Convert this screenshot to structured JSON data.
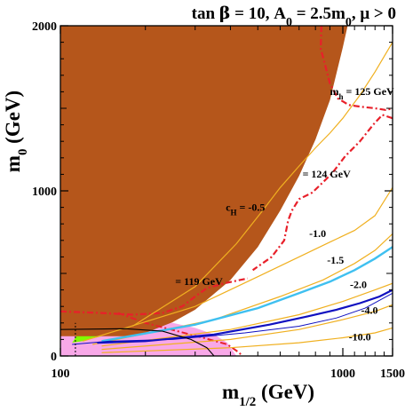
{
  "chart_data": {
    "type": "line",
    "title": "tan β = 10, A₀ = 2.5m₀, μ > 0",
    "title_parts": {
      "pre": "tan ",
      "beta": "β",
      "mid": " = 10, A",
      "sub0": "0",
      "eq": " = 2.5m",
      "sub0b": "0",
      "post": ",  μ > 0"
    },
    "xlabel": {
      "main": "m",
      "sub": "1/2",
      "unit": " (GeV)"
    },
    "ylabel": {
      "main": "m",
      "sub": "0",
      "unit": " (GeV)"
    },
    "xlim": [
      100,
      1500
    ],
    "ylim": [
      0,
      2000
    ],
    "x_ticks": [
      100,
      1000,
      1500
    ],
    "y_ticks": [
      0,
      1000,
      2000
    ],
    "x_tick_labels": [
      "100",
      "1000",
      "1500"
    ],
    "y_tick_labels": [
      "0",
      "1000",
      "2000"
    ],
    "colors": {
      "stau_lsp": "#b5561b",
      "gminus2": "#80ff00",
      "bsgamma": "#f8a8e8",
      "relic": "#1010c0",
      "ch": "#f0b020",
      "higgs": "#e8202a",
      "bsmumu": "#3fc0f0",
      "lep": "#000000"
    },
    "regions": {
      "stau_lsp": [
        [
          100,
          2000
        ],
        [
          1040,
          2000
        ],
        [
          1000,
          1870
        ],
        [
          900,
          1550
        ],
        [
          800,
          1310
        ],
        [
          700,
          1090
        ],
        [
          600,
          880
        ],
        [
          500,
          660
        ],
        [
          400,
          460
        ],
        [
          300,
          280
        ],
        [
          250,
          205
        ],
        [
          200,
          140
        ],
        [
          180,
          120
        ],
        [
          100,
          120
        ]
      ],
      "gminus2": [
        [
          110,
          80
        ],
        [
          115,
          130
        ],
        [
          120,
          180
        ],
        [
          130,
          230
        ],
        [
          150,
          300
        ],
        [
          170,
          370
        ],
        [
          200,
          450
        ],
        [
          240,
          530
        ],
        [
          340,
          560
        ],
        [
          320,
          480
        ],
        [
          300,
          420
        ],
        [
          280,
          360
        ],
        [
          250,
          300
        ],
        [
          220,
          250
        ],
        [
          200,
          210
        ],
        [
          180,
          170
        ],
        [
          160,
          150
        ],
        [
          140,
          120
        ],
        [
          120,
          90
        ]
      ],
      "bsgamma": [
        [
          100,
          0
        ],
        [
          100,
          250
        ],
        [
          150,
          230
        ],
        [
          200,
          220
        ],
        [
          250,
          200
        ],
        [
          300,
          170
        ],
        [
          350,
          130
        ],
        [
          390,
          80
        ],
        [
          420,
          0
        ]
      ]
    },
    "series": [
      {
        "label": "mₕ = 125 GeV",
        "kind": "higgs",
        "label_parts": {
          "main": "m",
          "sub": "h",
          "rest": " = 125 GeV"
        },
        "label_at": [
          900,
          1580
        ],
        "points": [
          [
            840,
            2000
          ],
          [
            835,
            1860
          ],
          [
            860,
            1780
          ],
          [
            900,
            1650
          ],
          [
            960,
            1560
          ],
          [
            1050,
            1520
          ],
          [
            1150,
            1510
          ],
          [
            1300,
            1500
          ],
          [
            1420,
            1490
          ],
          [
            1500,
            1500
          ]
        ]
      },
      {
        "label": "= 124 GeV",
        "kind": "higgs",
        "label_at": [
          720,
          1080
        ],
        "points": [
          [
            1500,
            1440
          ],
          [
            1380,
            1460
          ],
          [
            1280,
            1400
          ],
          [
            1150,
            1300
          ],
          [
            1020,
            1210
          ],
          [
            920,
            1110
          ],
          [
            860,
            1060
          ],
          [
            780,
            990
          ],
          [
            700,
            950
          ],
          [
            660,
            880
          ],
          [
            640,
            820
          ],
          [
            620,
            700
          ],
          [
            560,
            600
          ],
          [
            480,
            520
          ]
        ]
      },
      {
        "label": "= 119 GeV",
        "kind": "higgs",
        "label_at": [
          255,
          430
        ],
        "points": [
          [
            100,
            270
          ],
          [
            140,
            260
          ],
          [
            180,
            250
          ],
          [
            230,
            260
          ],
          [
            270,
            300
          ],
          [
            300,
            360
          ],
          [
            330,
            410
          ],
          [
            380,
            440
          ],
          [
            460,
            470
          ]
        ]
      },
      {
        "label": "",
        "kind": "higgs_low",
        "points": [
          [
            160,
            260
          ],
          [
            200,
            200
          ],
          [
            260,
            150
          ],
          [
            320,
            110
          ],
          [
            390,
            70
          ],
          [
            430,
            20
          ],
          [
            440,
            0
          ]
        ]
      },
      {
        "label": "cH = -0.5",
        "kind": "ch",
        "label_parts": {
          "main": "c",
          "sub": "H",
          "rest": " =  -0.5"
        },
        "label_at": [
          385,
          880
        ],
        "points": [
          [
            180,
            180
          ],
          [
            300,
            420
          ],
          [
            420,
            680
          ],
          [
            520,
            880
          ],
          [
            600,
            1020
          ],
          [
            700,
            1150
          ],
          [
            800,
            1260
          ],
          [
            900,
            1350
          ],
          [
            1000,
            1440
          ],
          [
            1150,
            1580
          ],
          [
            1300,
            1720
          ],
          [
            1500,
            1900
          ]
        ]
      },
      {
        "label": "-1.0",
        "kind": "ch",
        "label_at": [
          760,
          720
        ],
        "points": [
          [
            120,
            90
          ],
          [
            300,
            300
          ],
          [
            500,
            480
          ],
          [
            700,
            600
          ],
          [
            900,
            690
          ],
          [
            1100,
            760
          ],
          [
            1300,
            850
          ],
          [
            1500,
            1020
          ]
        ]
      },
      {
        "label": "-1.5",
        "kind": "ch",
        "label_at": [
          880,
          560
        ],
        "points": [
          [
            130,
            70
          ],
          [
            350,
            220
          ],
          [
            600,
            360
          ],
          [
            850,
            460
          ],
          [
            1100,
            560
          ],
          [
            1300,
            640
          ],
          [
            1500,
            740
          ]
        ]
      },
      {
        "label": "-2.0",
        "kind": "ch",
        "label_at": [
          1060,
          410
        ],
        "points": [
          [
            140,
            60
          ],
          [
            400,
            160
          ],
          [
            700,
            250
          ],
          [
            1000,
            330
          ],
          [
            1300,
            400
          ],
          [
            1500,
            440
          ]
        ]
      },
      {
        "label": "-4.0",
        "kind": "ch",
        "label_at": [
          1160,
          255
        ],
        "points": [
          [
            140,
            40
          ],
          [
            400,
            100
          ],
          [
            700,
            160
          ],
          [
            1000,
            220
          ],
          [
            1300,
            270
          ],
          [
            1500,
            310
          ]
        ]
      },
      {
        "label": "-10.0",
        "kind": "ch",
        "label_at": [
          1050,
          95
        ],
        "points": [
          [
            140,
            20
          ],
          [
            400,
            50
          ],
          [
            700,
            80
          ],
          [
            1000,
            110
          ],
          [
            1300,
            140
          ],
          [
            1500,
            170
          ]
        ]
      },
      {
        "label": "",
        "kind": "bsmumu",
        "points": [
          [
            140,
            90
          ],
          [
            300,
            190
          ],
          [
            500,
            290
          ],
          [
            700,
            380
          ],
          [
            900,
            450
          ],
          [
            1100,
            520
          ],
          [
            1300,
            590
          ],
          [
            1500,
            660
          ]
        ]
      },
      {
        "label": "",
        "kind": "relic",
        "points": [
          [
            135,
            80
          ],
          [
            200,
            90
          ],
          [
            350,
            130
          ],
          [
            550,
            190
          ],
          [
            750,
            240
          ],
          [
            950,
            280
          ],
          [
            1150,
            320
          ],
          [
            1350,
            360
          ],
          [
            1500,
            400
          ]
        ]
      },
      {
        "label": "",
        "kind": "relic_edge",
        "points": [
          [
            110,
            70
          ],
          [
            150,
            90
          ],
          [
            250,
            100
          ],
          [
            450,
            140
          ],
          [
            700,
            180
          ],
          [
            950,
            230
          ],
          [
            1200,
            290
          ],
          [
            1500,
            380
          ]
        ]
      },
      {
        "label": "",
        "kind": "lep",
        "points": [
          [
            100,
            160
          ],
          [
            170,
            165
          ],
          [
            230,
            150
          ],
          [
            290,
            100
          ],
          [
            330,
            50
          ],
          [
            350,
            0
          ]
        ]
      },
      {
        "label": "",
        "kind": "lep_vertical",
        "points": [
          [
            113,
            0
          ],
          [
            113,
            200
          ]
        ]
      }
    ]
  }
}
